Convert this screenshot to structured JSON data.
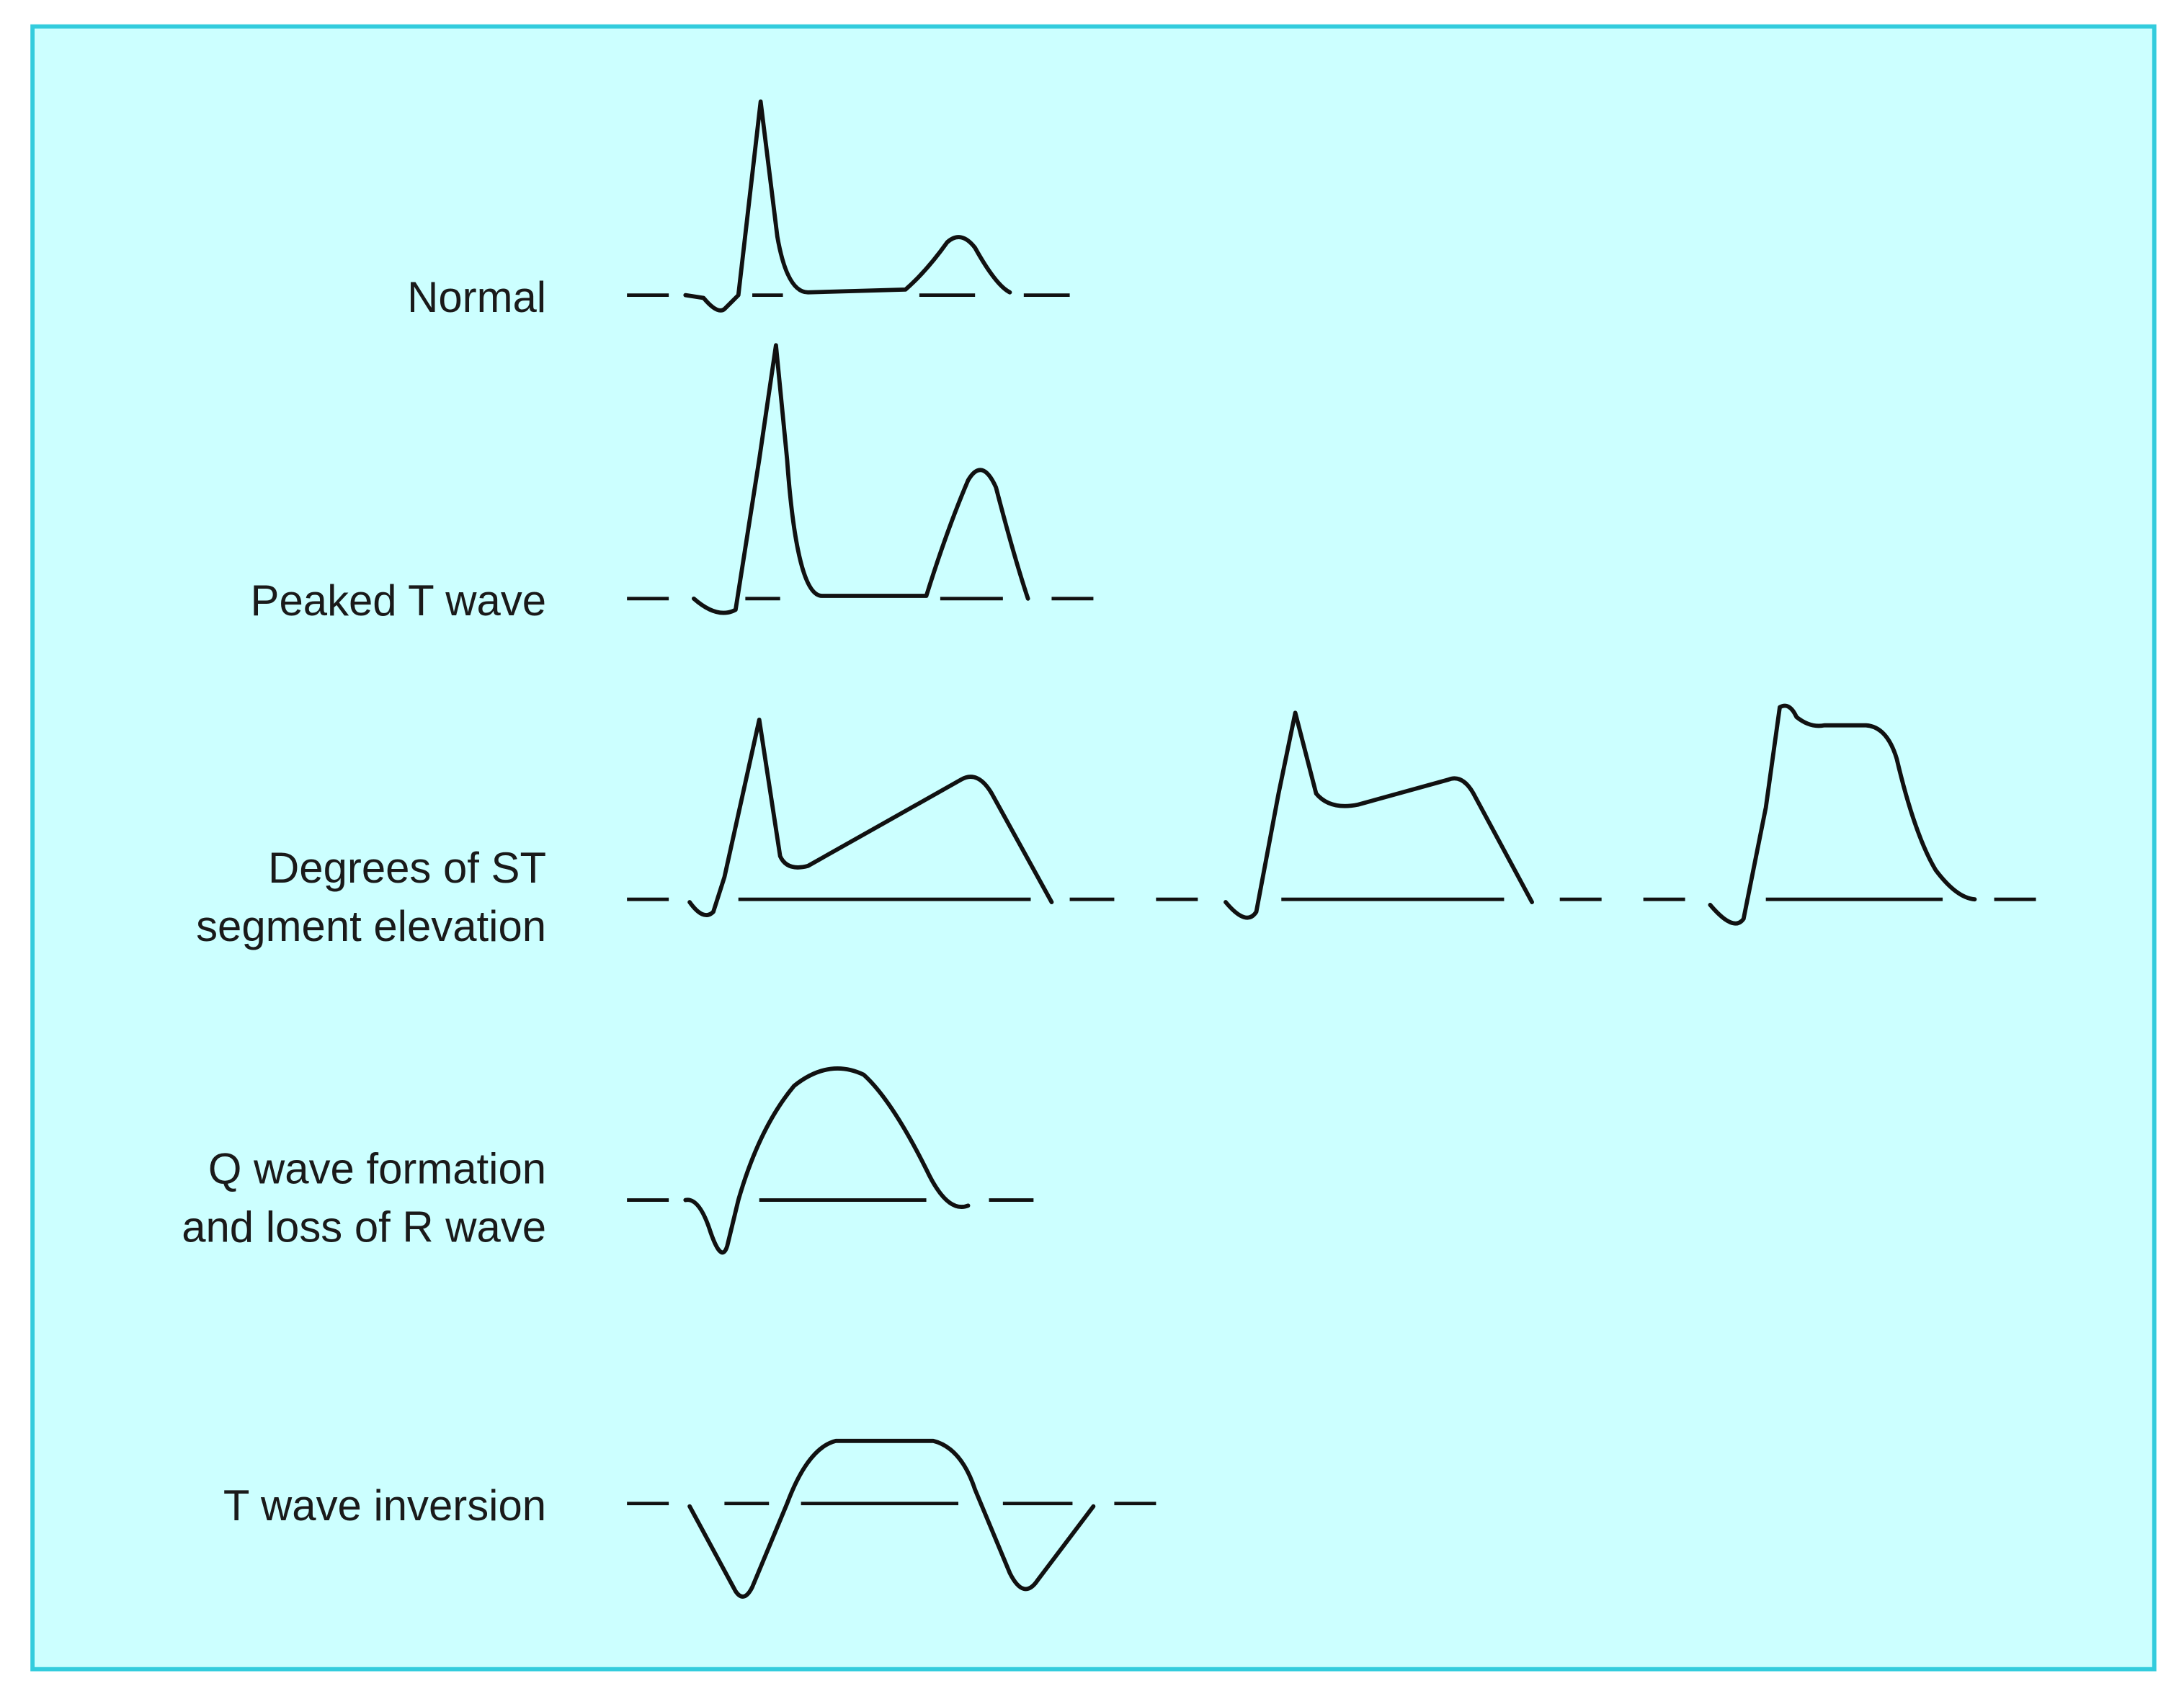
{
  "rows": [
    {
      "label_lines": [
        "Normal"
      ]
    },
    {
      "label_lines": [
        "Peaked T wave"
      ]
    },
    {
      "label_lines": [
        "Degrees of ST",
        "segment elevation"
      ]
    },
    {
      "label_lines": [
        "Q wave formation",
        "and loss of R wave"
      ]
    },
    {
      "label_lines": [
        "T wave inversion"
      ]
    }
  ]
}
